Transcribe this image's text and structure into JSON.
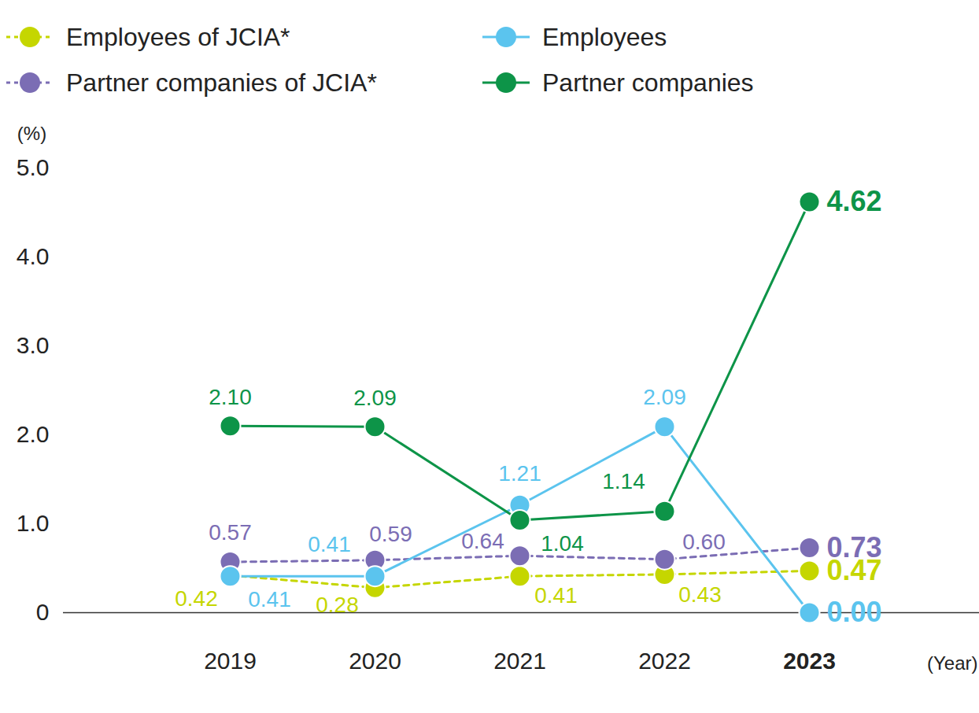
{
  "chart_data": {
    "type": "line",
    "categories": [
      "2019",
      "2020",
      "2021",
      "2022",
      "2023"
    ],
    "x_label": "(Year)",
    "y_label": "(%)",
    "ylim": [
      0,
      5
    ],
    "yticks": [
      0,
      {
        "value": 1,
        "label": "1.0"
      },
      {
        "value": 2,
        "label": "2.0"
      },
      {
        "value": 3,
        "label": "3.0"
      },
      {
        "value": 4,
        "label": "4.0"
      },
      {
        "value": 5,
        "label": "5.0"
      }
    ],
    "data_labels": true,
    "legend": "top",
    "series": [
      {
        "name": "Employees of JCIA*",
        "color": "#c5d600",
        "line_style": "dashed",
        "marker": "circle",
        "values": [
          0.42,
          0.28,
          0.41,
          0.43,
          0.47
        ],
        "value_labels": [
          "0.42",
          "0.28",
          "0.41",
          "0.43",
          "0.47"
        ]
      },
      {
        "name": "Partner companies of JCIA*",
        "color": "#7b6db4",
        "line_style": "dashed",
        "marker": "circle",
        "values": [
          0.57,
          0.59,
          0.64,
          0.6,
          0.73
        ],
        "value_labels": [
          "0.57",
          "0.59",
          "0.64",
          "0.60",
          "0.73"
        ]
      },
      {
        "name": "Employees",
        "color": "#5bc4ee",
        "line_style": "solid",
        "marker": "circle",
        "values": [
          0.41,
          0.41,
          1.21,
          2.09,
          0.0
        ],
        "value_labels": [
          "0.41",
          "0.41",
          "1.21",
          "2.09",
          "0.00"
        ]
      },
      {
        "name": "Partner companies",
        "color": "#0d9448",
        "line_style": "solid",
        "marker": "circle",
        "values": [
          2.1,
          2.09,
          1.04,
          1.14,
          4.62
        ],
        "value_labels": [
          "2.10",
          "2.09",
          "1.04",
          "1.14",
          "4.62"
        ]
      }
    ]
  }
}
